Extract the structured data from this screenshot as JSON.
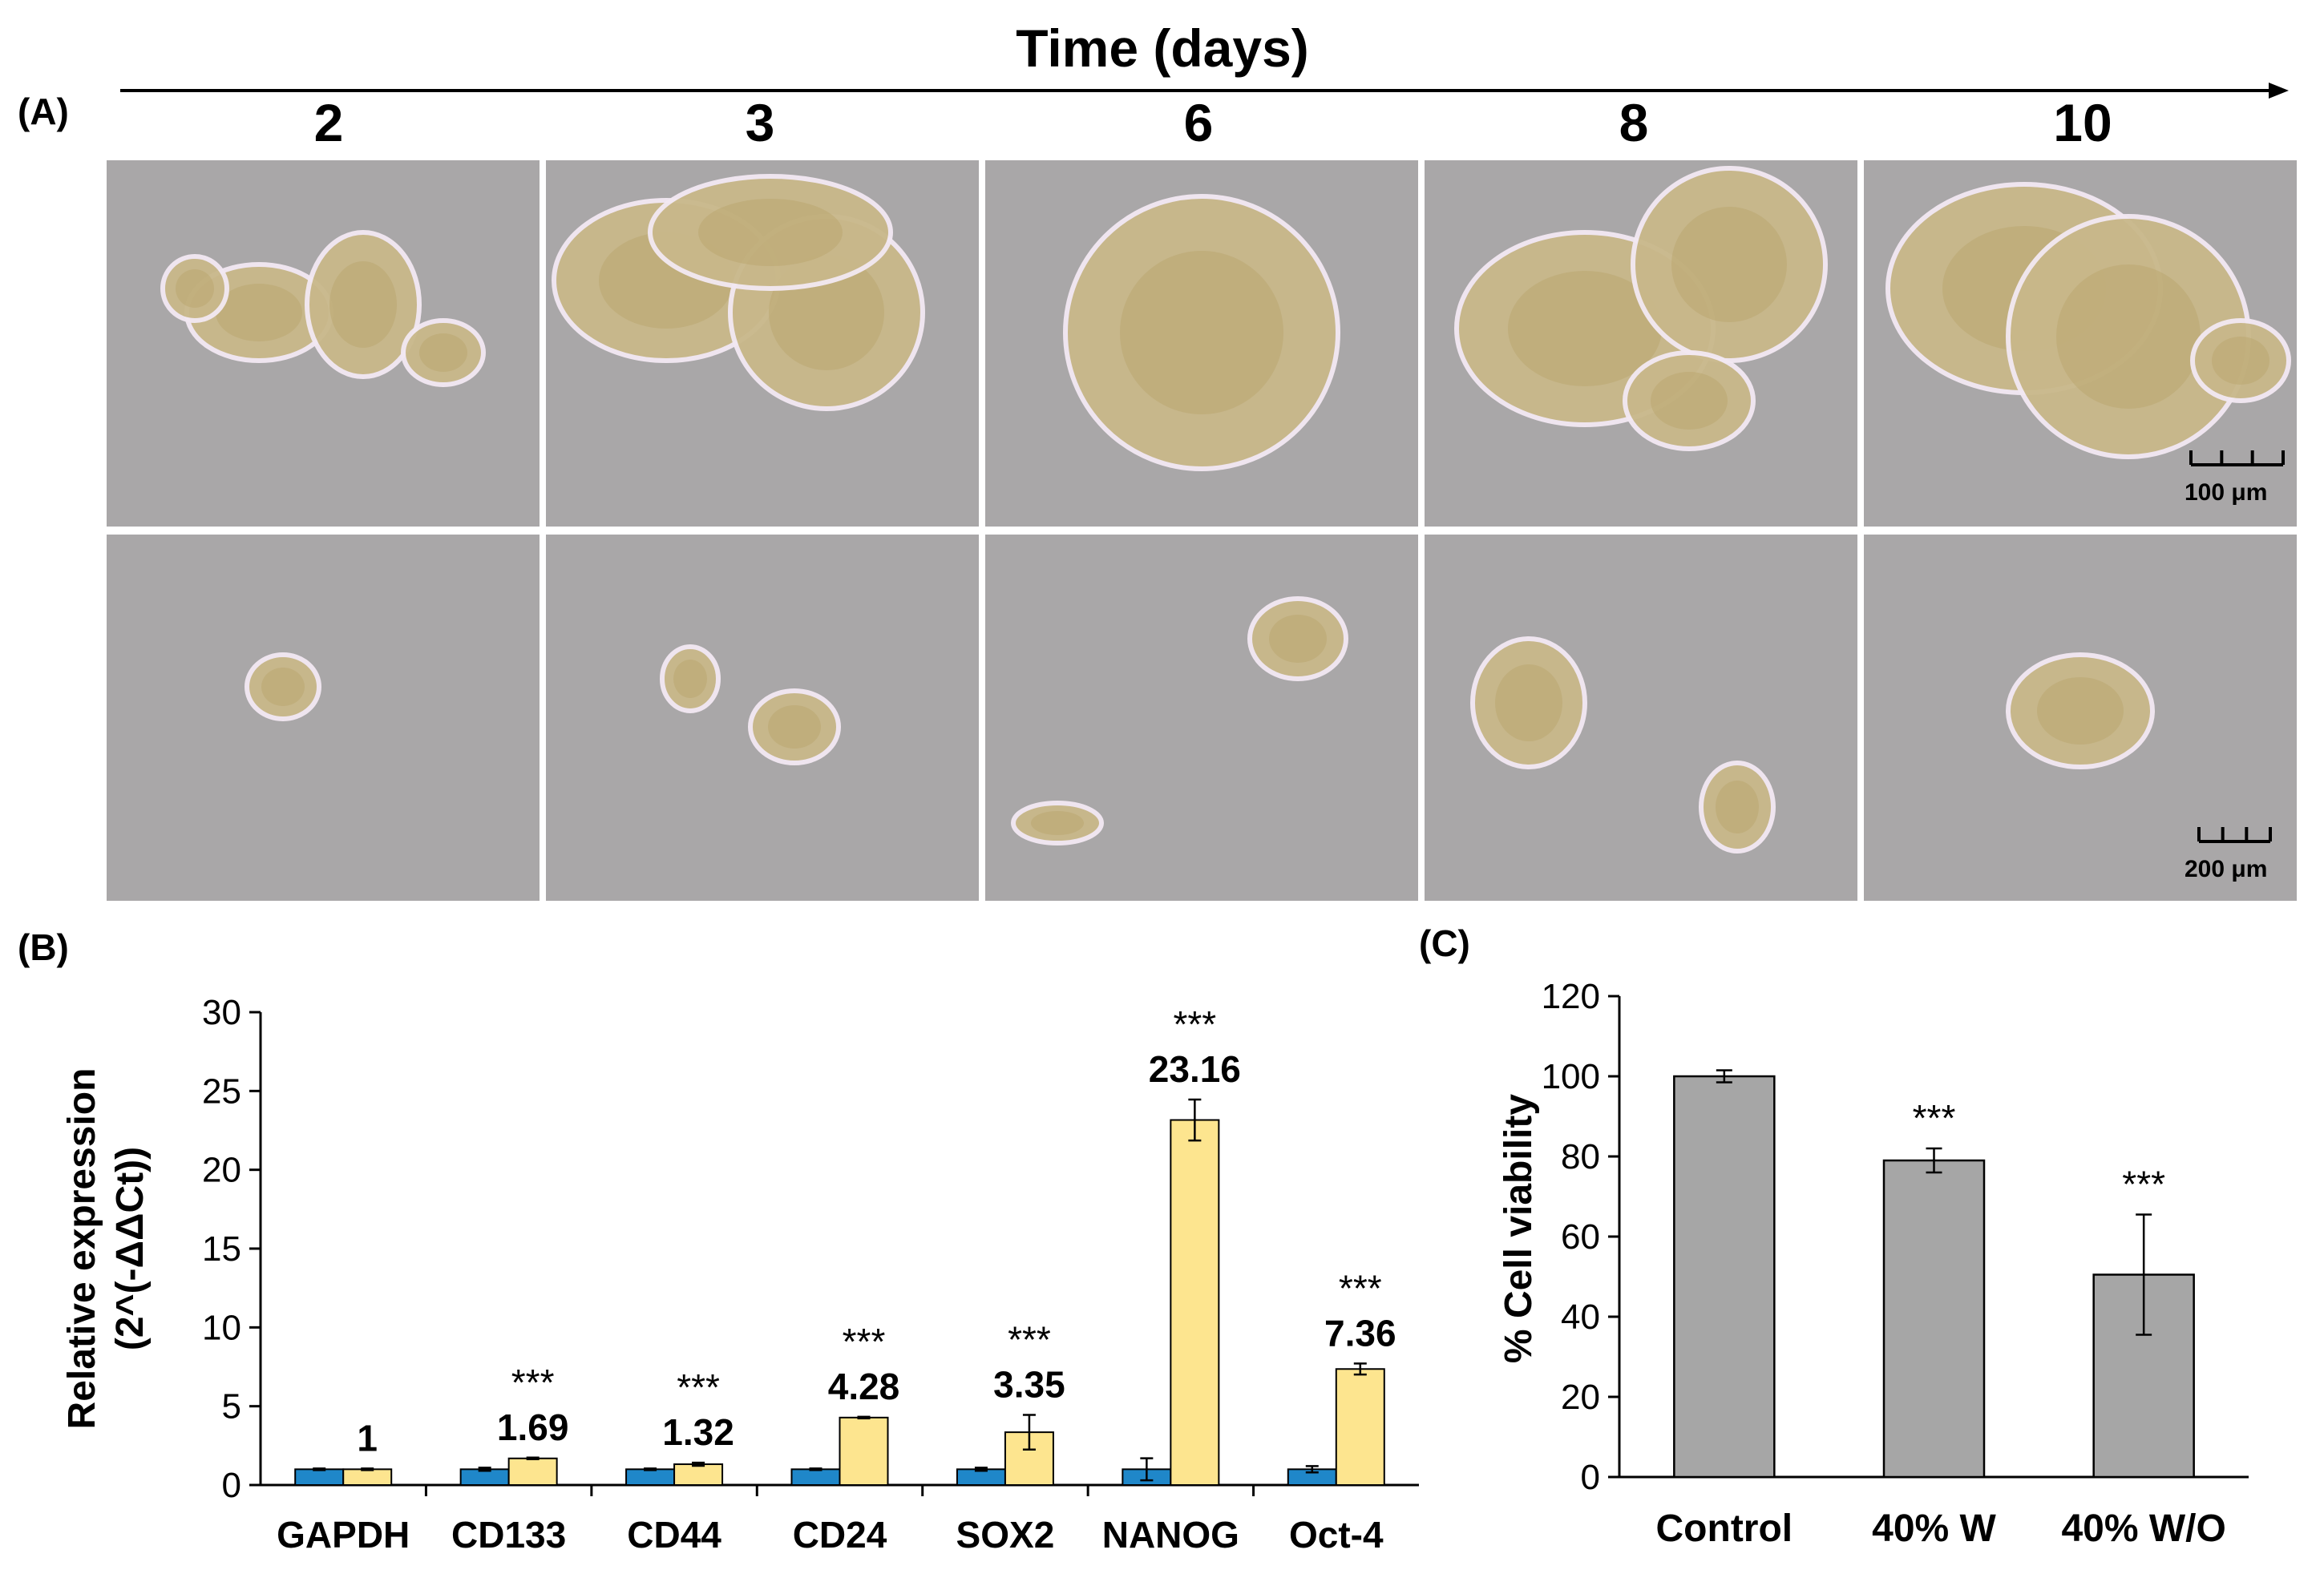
{
  "figure": {
    "panel_a_label": "(A)",
    "panel_b_label": "(B)",
    "panel_c_label": "(C)",
    "time_axis_title": "Time (days)",
    "days": [
      "2",
      "3",
      "6",
      "8",
      "10"
    ],
    "scalebar_top": "100 μm",
    "scalebar_bottom": "200 μm",
    "colors": {
      "micrograph_bg": "#a9a7a8",
      "cell_cluster": "#c9b88a",
      "series_blue": "#1f87c9",
      "series_yellow": "#fde58f",
      "bar_gray": "#a6a6a6"
    }
  },
  "chart_data": [
    {
      "type": "bar",
      "ylabel": "Relative expression (2^(-ΔΔCt))",
      "ylabel_line1": "Relative expression",
      "ylabel_line2": "(2^(-ΔΔCt))",
      "xlabel": "",
      "ylim": [
        0,
        30
      ],
      "yticks": [
        "0",
        "5",
        "10",
        "15",
        "20",
        "25",
        "30"
      ],
      "categories": [
        "GAPDH",
        "CD133",
        "CD44",
        "CD24",
        "SOX2",
        "NANOG",
        "Oct-4"
      ],
      "series": [
        {
          "values": [
            1,
            1,
            1,
            1,
            1,
            1,
            1
          ],
          "errors": [
            0.05,
            0.1,
            0.05,
            0.05,
            0.1,
            0.7,
            0.2
          ],
          "color": "#1f87c9"
        },
        {
          "values": [
            1,
            1.69,
            1.32,
            4.28,
            3.35,
            23.16,
            7.36
          ],
          "errors": [
            0.05,
            0.05,
            0.1,
            0.05,
            1.1,
            1.3,
            0.35
          ],
          "color": "#fde58f"
        }
      ],
      "data_labels": [
        "1",
        "1.69",
        "1.32",
        "4.28",
        "3.35",
        "23.16",
        "7.36"
      ],
      "significance": [
        "",
        "***",
        "***",
        "***",
        "***",
        "***",
        "***"
      ],
      "grid": false
    },
    {
      "type": "bar",
      "ylabel": "% Cell viability",
      "xlabel": "",
      "ylim": [
        0,
        120
      ],
      "yticks": [
        "0",
        "20",
        "40",
        "60",
        "80",
        "100",
        "120"
      ],
      "categories": [
        "Control",
        "40% W",
        "40% W/O"
      ],
      "values": [
        100,
        79,
        50.5
      ],
      "errors": [
        1.5,
        3,
        15
      ],
      "significance": [
        "",
        "***",
        "***"
      ],
      "color": "#a6a6a6",
      "grid": false
    }
  ]
}
